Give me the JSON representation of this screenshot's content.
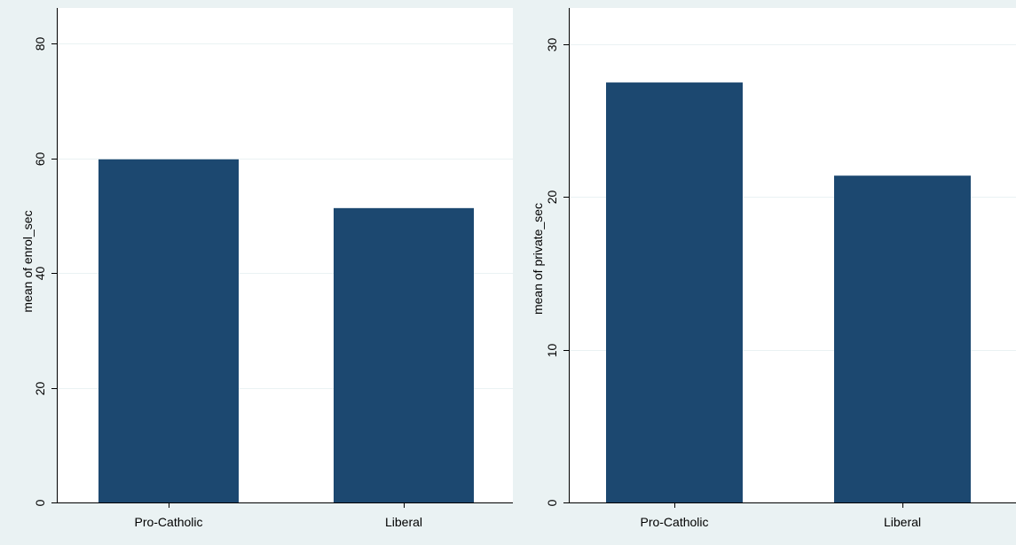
{
  "chart_data": [
    {
      "type": "bar",
      "categories": [
        "Pro-Catholic",
        "Liberal"
      ],
      "values": [
        59.8,
        51.3
      ],
      "title": "",
      "xlabel": "",
      "ylabel": "mean of enrol_sec",
      "ylim": [
        0,
        80
      ],
      "yticks": [
        0,
        20,
        40,
        60,
        80
      ],
      "grid": true,
      "bar_color": "#1c4870"
    },
    {
      "type": "bar",
      "categories": [
        "Pro-Catholic",
        "Liberal"
      ],
      "values": [
        27.5,
        21.4
      ],
      "title": "",
      "xlabel": "",
      "ylabel": "mean of private_sec",
      "ylim": [
        0,
        30
      ],
      "yticks": [
        0,
        10,
        20,
        30
      ],
      "grid": true,
      "bar_color": "#1c4870"
    }
  ],
  "colors": {
    "panel_background": "#eaf2f3",
    "plot_background": "#ffffff",
    "bar": "#1c4870",
    "gridline": "#eaf2f3"
  }
}
